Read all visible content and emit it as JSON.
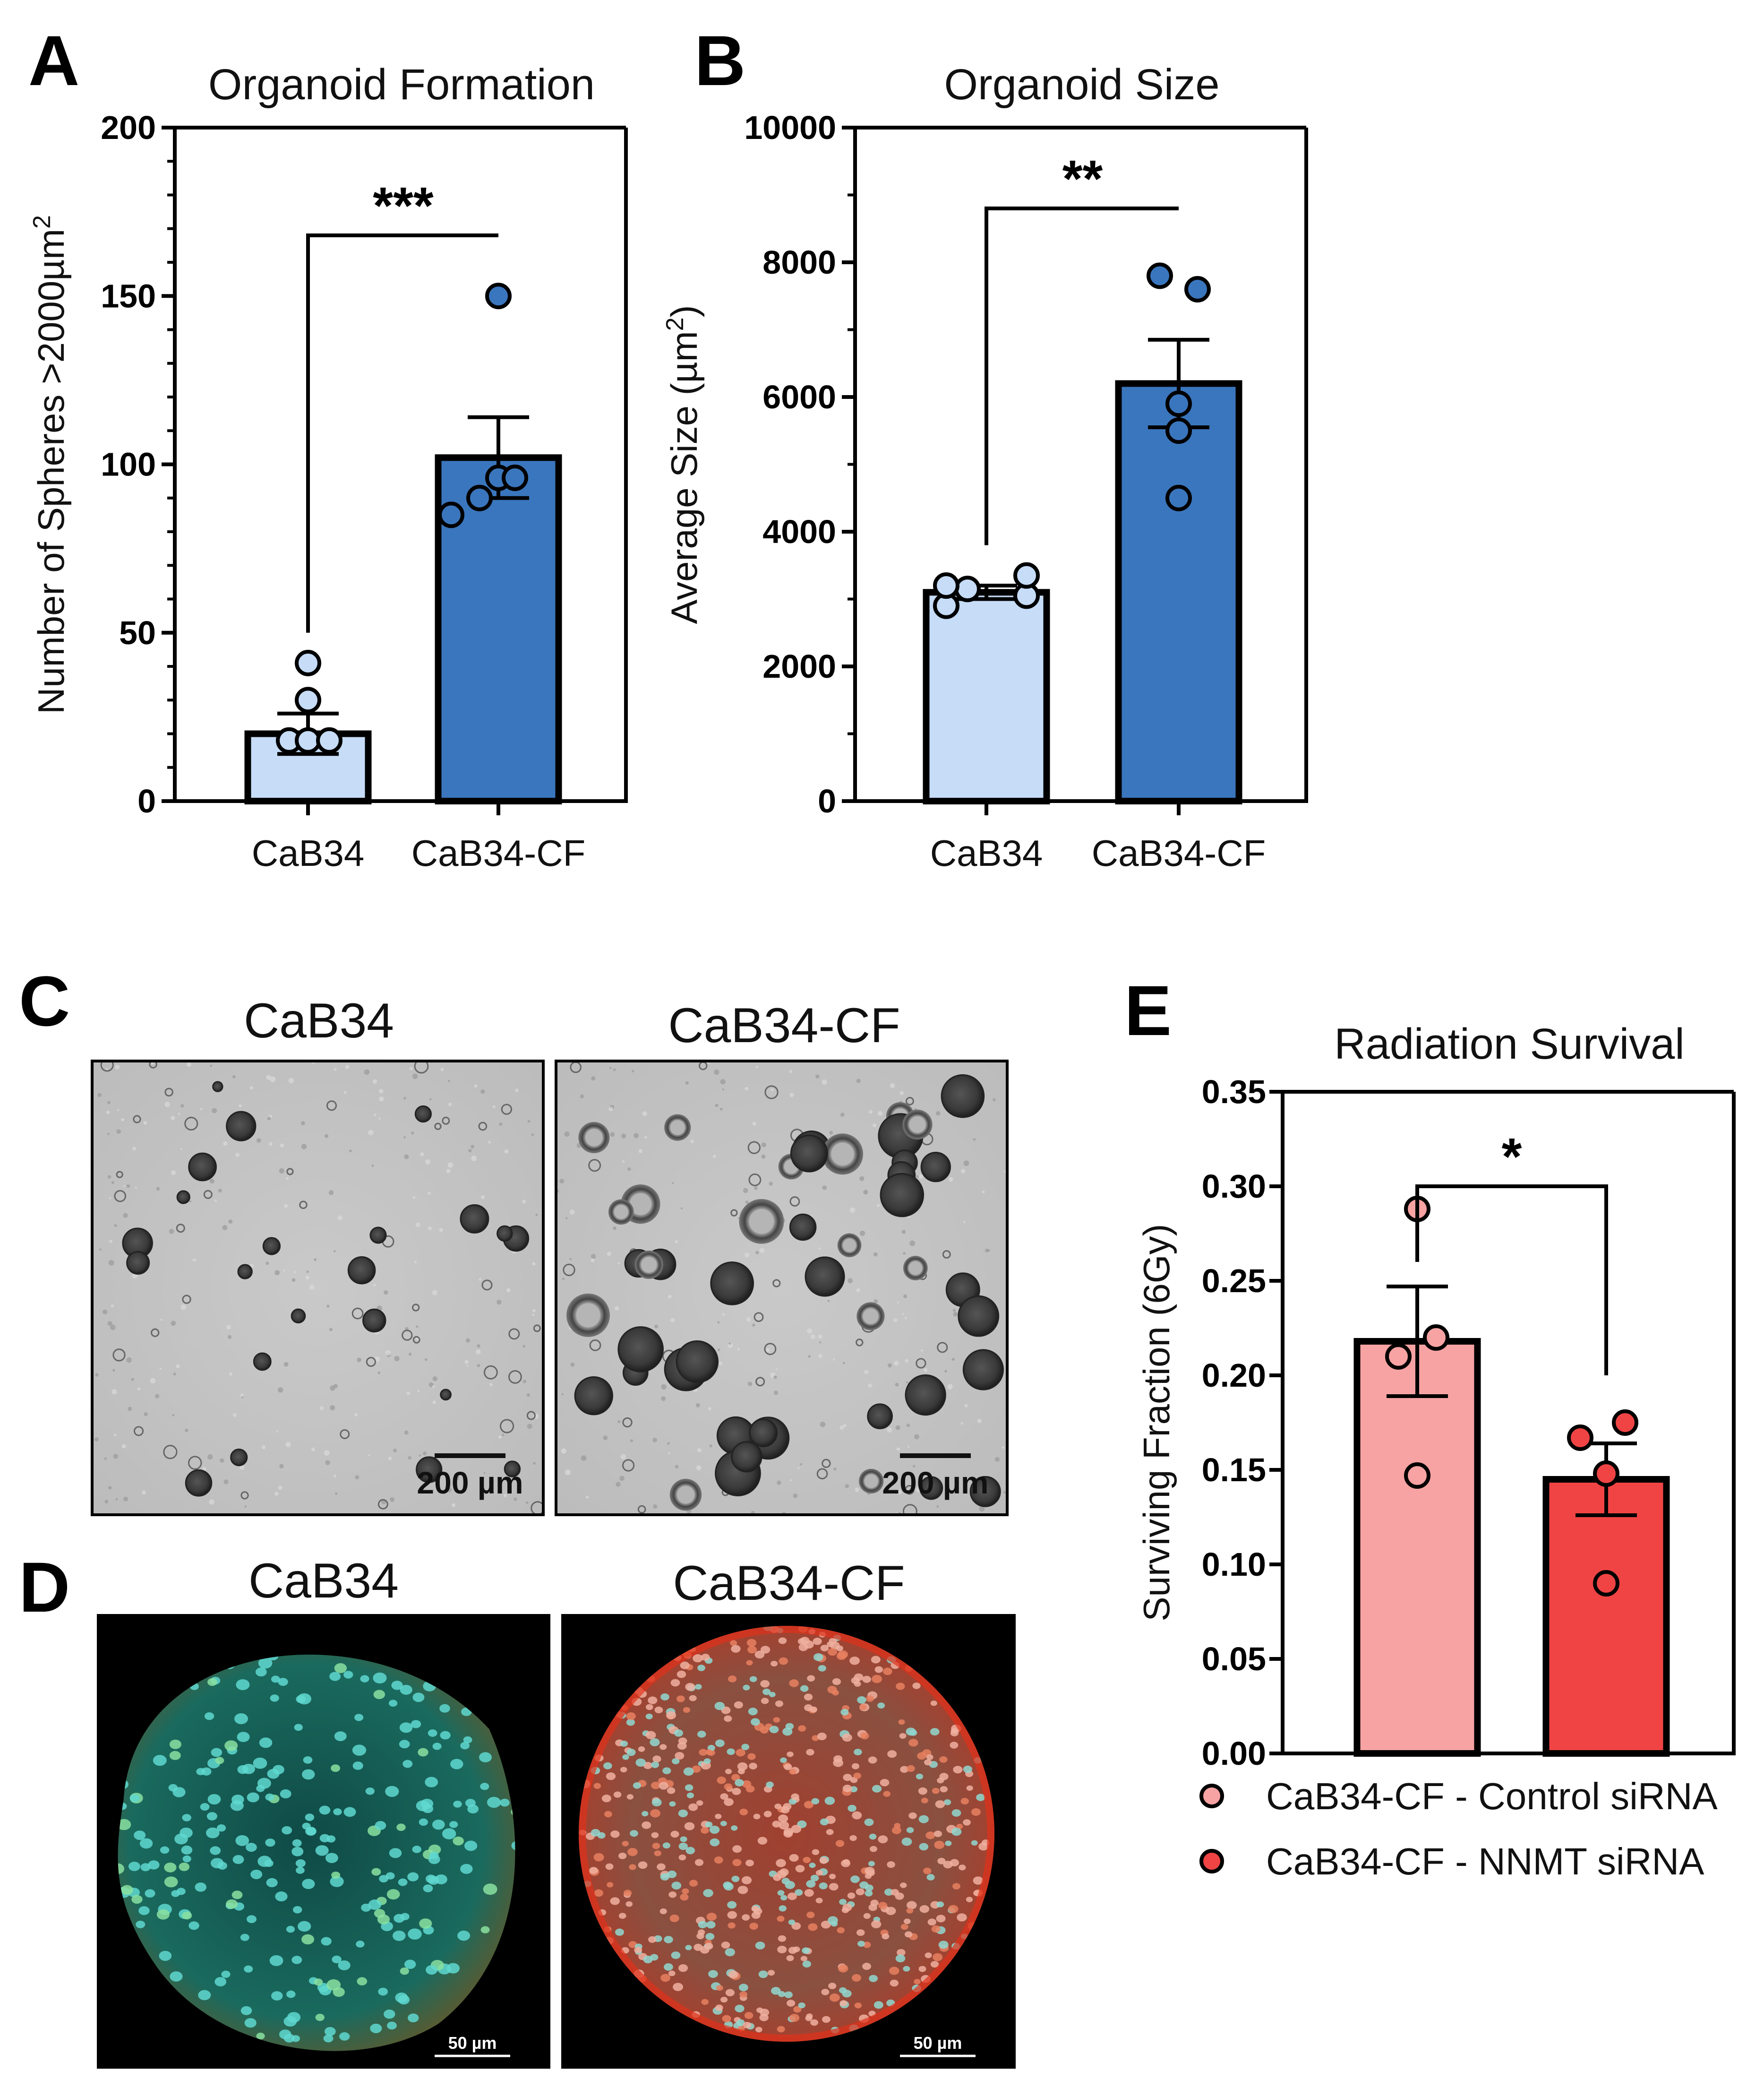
{
  "figure": {
    "panel_labels": {
      "a": "A",
      "b": "B",
      "c": "C",
      "d": "D",
      "e": "E"
    },
    "images": {
      "c_left_title": "CaB34",
      "c_right_title": "CaB34-CF",
      "c_scalebar": "200 µm",
      "d_left_title": "CaB34",
      "d_right_title": "CaB34-CF",
      "d_scalebar": "50 µm"
    },
    "colors": {
      "light_blue": "#c6dcf7",
      "dark_blue": "#3a76bd",
      "light_red": "#f7a3a3",
      "dark_red": "#f04444"
    }
  },
  "chart_data": [
    {
      "id": "A",
      "type": "bar",
      "title": "Organoid Formation",
      "xlabel": "",
      "ylabel": "Number of Spheres >2000µm",
      "ylabel_sup": "2",
      "categories": [
        "CaB34",
        "CaB34-CF"
      ],
      "values": [
        20,
        102
      ],
      "sem": [
        6,
        12
      ],
      "points": [
        [
          30,
          18,
          18,
          18,
          41
        ],
        [
          85,
          90,
          96,
          96,
          150
        ]
      ],
      "ylim": [
        0,
        200
      ],
      "yticks": [
        "0",
        "50",
        "100",
        "150",
        "200"
      ],
      "ytick_values": [
        0,
        50,
        100,
        150,
        200
      ],
      "significance": "***",
      "bracket_start": [
        50,
        168
      ]
    },
    {
      "id": "B",
      "type": "bar",
      "title": "Organoid Size",
      "xlabel": "",
      "ylabel": "Average Size (µm",
      "ylabel_sup": "2",
      "ylabel_tail": ")",
      "categories": [
        "CaB34",
        "CaB34-CF"
      ],
      "values": [
        3100,
        6200
      ],
      "sem": [
        100,
        650
      ],
      "points": [
        [
          2900,
          3050,
          3150,
          3200,
          3350
        ],
        [
          4500,
          5500,
          5900,
          7600,
          7800
        ]
      ],
      "ylim": [
        0,
        10000
      ],
      "yticks": [
        "0",
        "2000",
        "4000",
        "6000",
        "8000",
        "10000"
      ],
      "ytick_values": [
        0,
        2000,
        4000,
        6000,
        8000,
        10000
      ],
      "significance": "**",
      "bracket_start": [
        3800,
        8800
      ]
    },
    {
      "id": "E",
      "type": "bar",
      "title": "Radiation Survival",
      "xlabel": "",
      "ylabel": "Surviving Fraction (6Gy)",
      "categories": [
        "CaB34-CF - Control siRNA",
        "CaB34-CF - NNMT siRNA"
      ],
      "legend": [
        "CaB34-CF - Control siRNA",
        "CaB34-CF - NNMT siRNA"
      ],
      "legend_position": "bottom",
      "values": [
        0.218,
        0.145
      ],
      "sem": [
        0.029,
        0.019
      ],
      "points": [
        [
          0.147,
          0.21,
          0.22,
          0.288
        ],
        [
          0.09,
          0.148,
          0.167,
          0.175
        ]
      ],
      "ylim": [
        0,
        0.35
      ],
      "yticks": [
        "0.00",
        "0.05",
        "0.10",
        "0.15",
        "0.20",
        "0.25",
        "0.30",
        "0.35"
      ],
      "ytick_values": [
        0,
        0.05,
        0.1,
        0.15,
        0.2,
        0.25,
        0.3,
        0.35
      ],
      "significance": "*",
      "bracket_start": [
        0.26,
        0.2
      ]
    }
  ]
}
